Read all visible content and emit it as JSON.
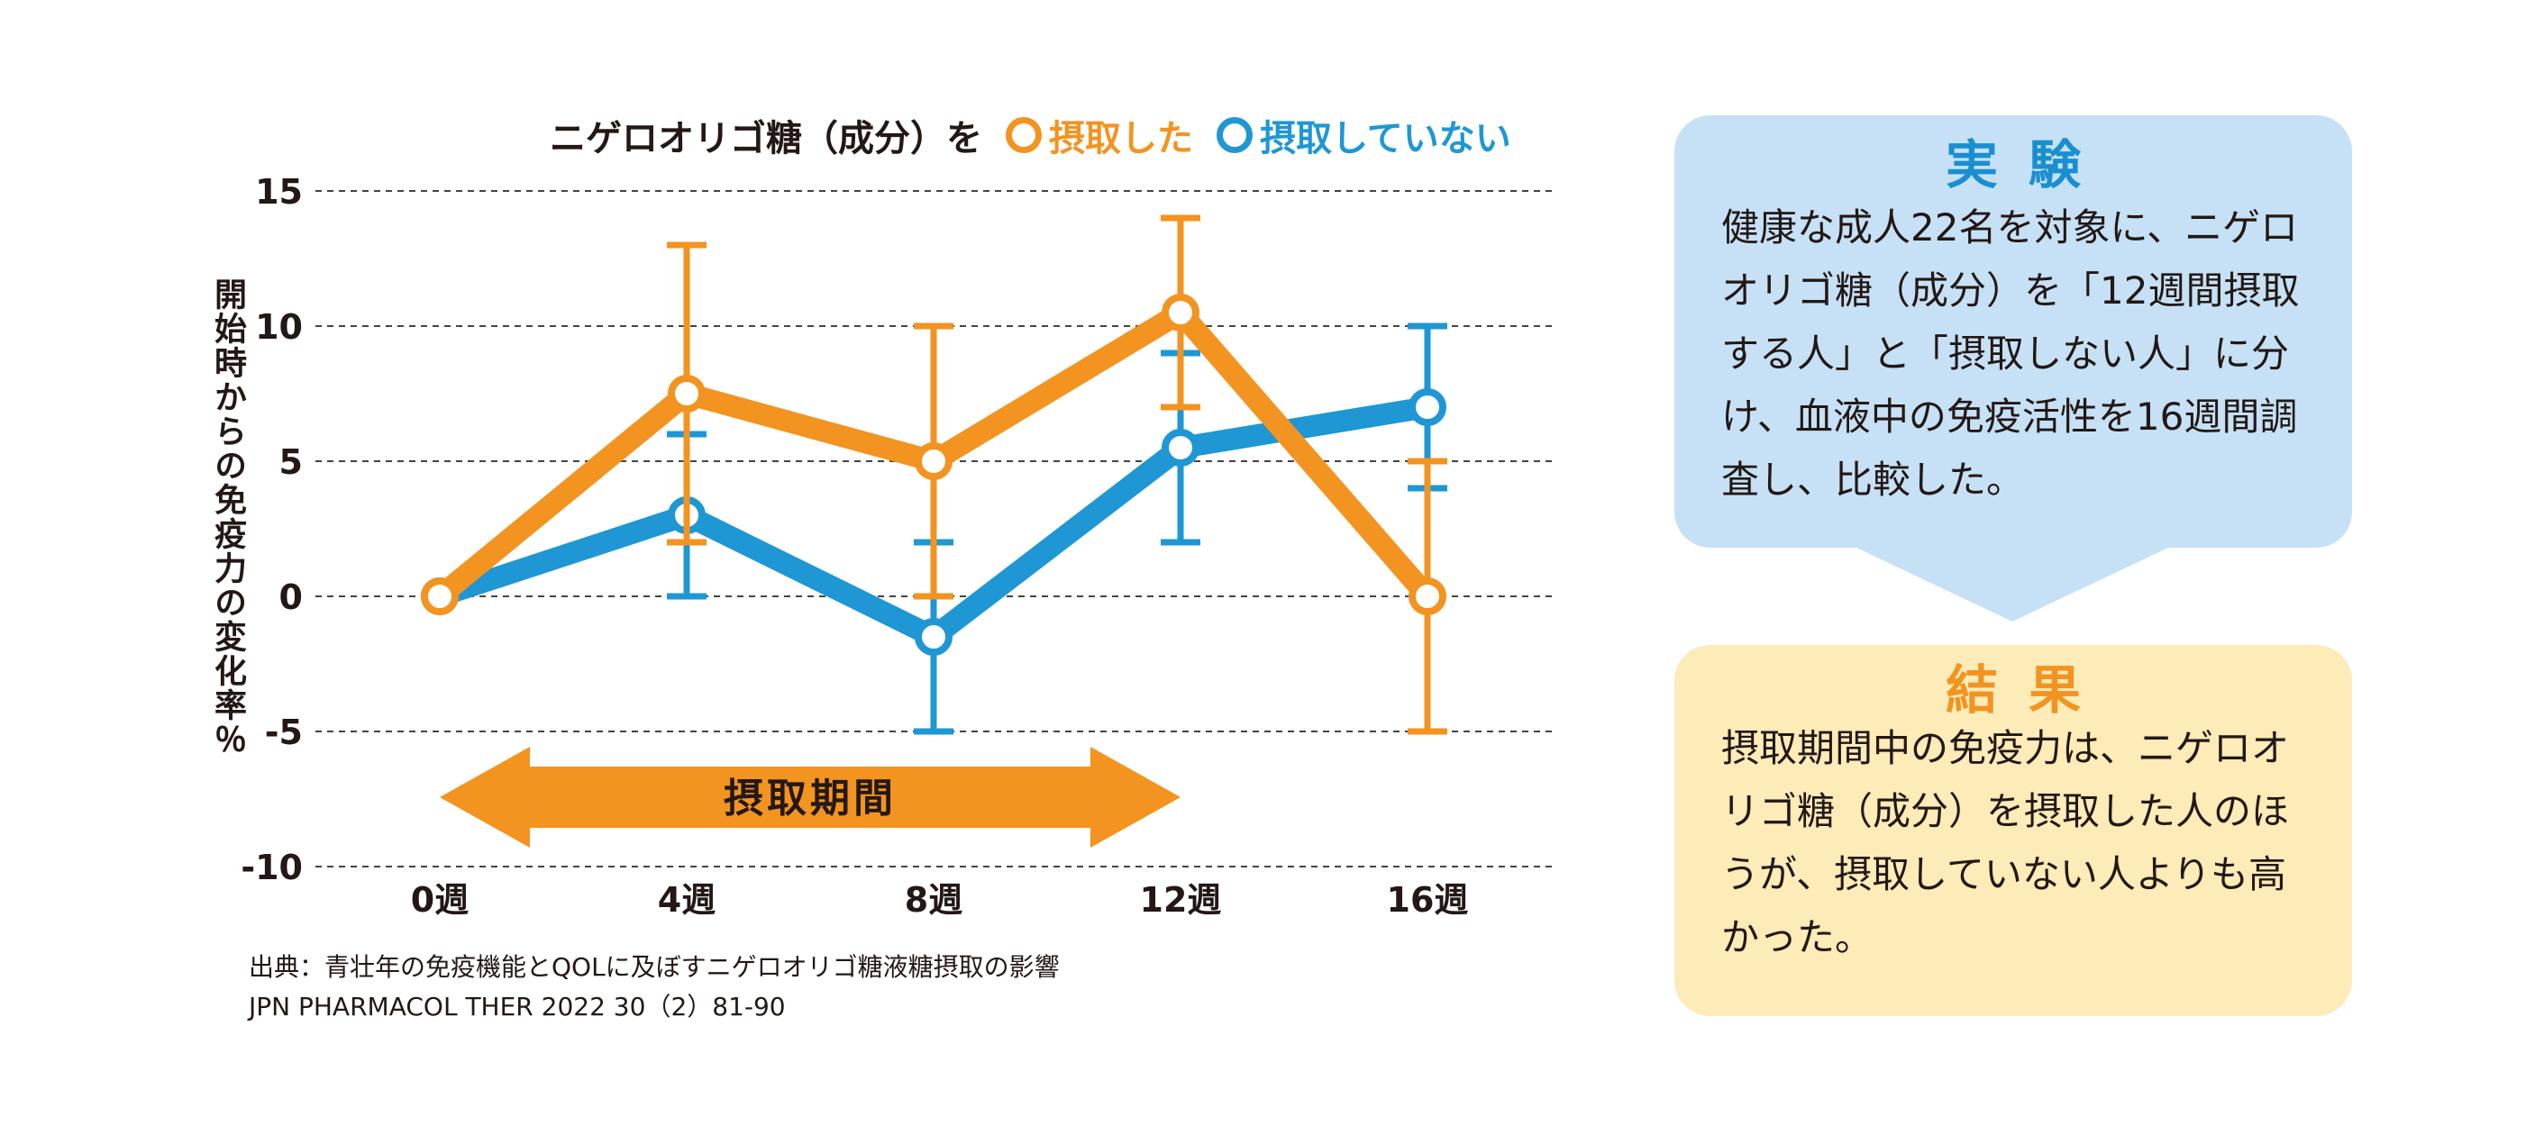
{
  "legend": {
    "prefix": "ニゲロオリゴ糖（成分）を",
    "taken": "摂取した",
    "not_taken": "摂取していない"
  },
  "colors": {
    "taken": "#f39320",
    "not_taken": "#1e97d4",
    "period_arrow": "#f39320",
    "exp_panel": "#c6e1f5",
    "res_panel": "#fdebb8"
  },
  "chart_data": {
    "type": "line",
    "title": "",
    "xlabel": "",
    "ylabel": "開始時からの免疫力の変化率％",
    "categories": [
      "0週",
      "4週",
      "8週",
      "12週",
      "16週"
    ],
    "ylim": [
      -10,
      15
    ],
    "yticks": [
      15,
      10,
      5,
      0,
      -5,
      -10
    ],
    "grid": "horizontal-dashed",
    "legend_position": "top",
    "series": [
      {
        "name": "摂取した",
        "color": "#f39320",
        "values": [
          0,
          7.5,
          5,
          10.5,
          0
        ],
        "error_low": [
          null,
          2,
          0,
          7,
          -5
        ],
        "error_high": [
          null,
          13,
          10,
          14,
          5
        ]
      },
      {
        "name": "摂取していない",
        "color": "#1e97d4",
        "values": [
          0,
          3,
          -1.5,
          5.5,
          7
        ],
        "error_low": [
          null,
          0,
          -5,
          2,
          4
        ],
        "error_high": [
          null,
          6,
          2,
          9,
          10
        ]
      }
    ],
    "annotation": {
      "label": "摂取期間",
      "from": "0週",
      "to": "12週"
    }
  },
  "source": {
    "line1": "出典：青壮年の免疫機能とQOLに及ぼすニゲロオリゴ糖液糖摂取の影響",
    "line2": "JPN PHARMACOL THER 2022 30（2）81-90"
  },
  "experiment": {
    "title": "実験",
    "body": "健康な成人22名を対象に、ニゲロオリゴ糖（成分）を「12週間摂取する人」と「摂取しない人」に分け、血液中の免疫活性を16週間調査し、比較した。"
  },
  "result": {
    "title": "結果",
    "body": "摂取期間中の免疫力は、ニゲロオリゴ糖（成分）を摂取した人のほうが、摂取していない人よりも高かった。"
  }
}
